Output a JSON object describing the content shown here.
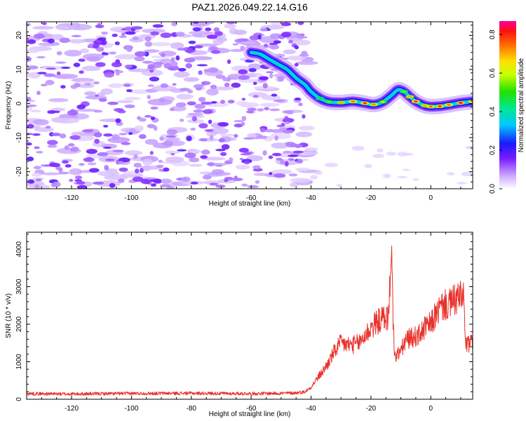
{
  "title": "PAZ1.2026.049.22.14.G16",
  "chart_data": [
    {
      "type": "heatmap",
      "name": "spectrogram",
      "xlabel": "Height of straight line (km)",
      "ylabel": "Frequency (Hz)",
      "xlim": [
        -135,
        14
      ],
      "ylim": [
        -25,
        24
      ],
      "xticks": [
        -120,
        -100,
        -80,
        -60,
        -40,
        -20,
        0
      ],
      "yticks": [
        -20,
        -10,
        0,
        10,
        20
      ],
      "noise_region_x": [
        -135,
        -42
      ],
      "ridge": {
        "x": [
          -60,
          -57,
          -54,
          -51,
          -48,
          -45,
          -42,
          -40,
          -37,
          -34,
          -30,
          -26,
          -22,
          -19,
          -16,
          -13,
          -11,
          -9,
          -7,
          -5,
          -2,
          0,
          3,
          6,
          10,
          14
        ],
        "freq": [
          15,
          14.5,
          13,
          11.5,
          10,
          7.5,
          5.5,
          3.5,
          1.5,
          0.5,
          0.3,
          0.6,
          0.1,
          -0.3,
          0.5,
          2.5,
          4,
          3.5,
          2,
          0.6,
          -0.6,
          -0.9,
          -0.8,
          -0.4,
          0.2,
          0.6
        ],
        "amplitude": [
          0.35,
          0.3,
          0.3,
          0.32,
          0.3,
          0.4,
          0.35,
          0.45,
          0.5,
          0.55,
          0.7,
          0.75,
          0.8,
          0.72,
          0.6,
          0.45,
          0.45,
          0.55,
          0.7,
          0.8,
          0.7,
          0.75,
          0.8,
          0.75,
          0.85,
          0.75
        ]
      },
      "colorbar": {
        "label": "Normalized spectral amplitude",
        "range": [
          0,
          0.87
        ],
        "ticks": [
          "0.0",
          "0.2",
          "0.4",
          "0.6",
          "0.8"
        ]
      }
    },
    {
      "type": "line",
      "name": "snr",
      "xlabel": "Height of straight line (km)",
      "ylabel": "SNR (10 * v/v)",
      "xlim": [
        -135,
        14
      ],
      "ylim": [
        0,
        4450
      ],
      "xticks": [
        -120,
        -100,
        -80,
        -60,
        -40,
        -20,
        0
      ],
      "yticks": [
        0,
        1000,
        2000,
        3000,
        4000
      ],
      "color": "#e8302a",
      "series": [
        {
          "name": "SNR",
          "x": [
            -135,
            -120,
            -100,
            -80,
            -60,
            -50,
            -45,
            -42,
            -40,
            -38,
            -36,
            -34,
            -32,
            -30,
            -28,
            -26,
            -24,
            -22,
            -20,
            -18,
            -16,
            -14,
            -13.2,
            -12.6,
            -12,
            -10,
            -8,
            -6,
            -4,
            -2,
            0,
            2,
            4,
            6,
            8,
            10,
            11,
            11.5,
            12,
            14
          ],
          "values": [
            150,
            140,
            155,
            160,
            150,
            160,
            170,
            200,
            320,
            550,
            750,
            1000,
            1300,
            1500,
            1450,
            1450,
            1500,
            1700,
            1900,
            2050,
            2150,
            2200,
            4300,
            2150,
            1100,
            1300,
            1600,
            1650,
            1700,
            1900,
            2000,
            2300,
            2500,
            2500,
            2650,
            2700,
            2800,
            1500,
            1450,
            1500
          ]
        }
      ]
    }
  ]
}
